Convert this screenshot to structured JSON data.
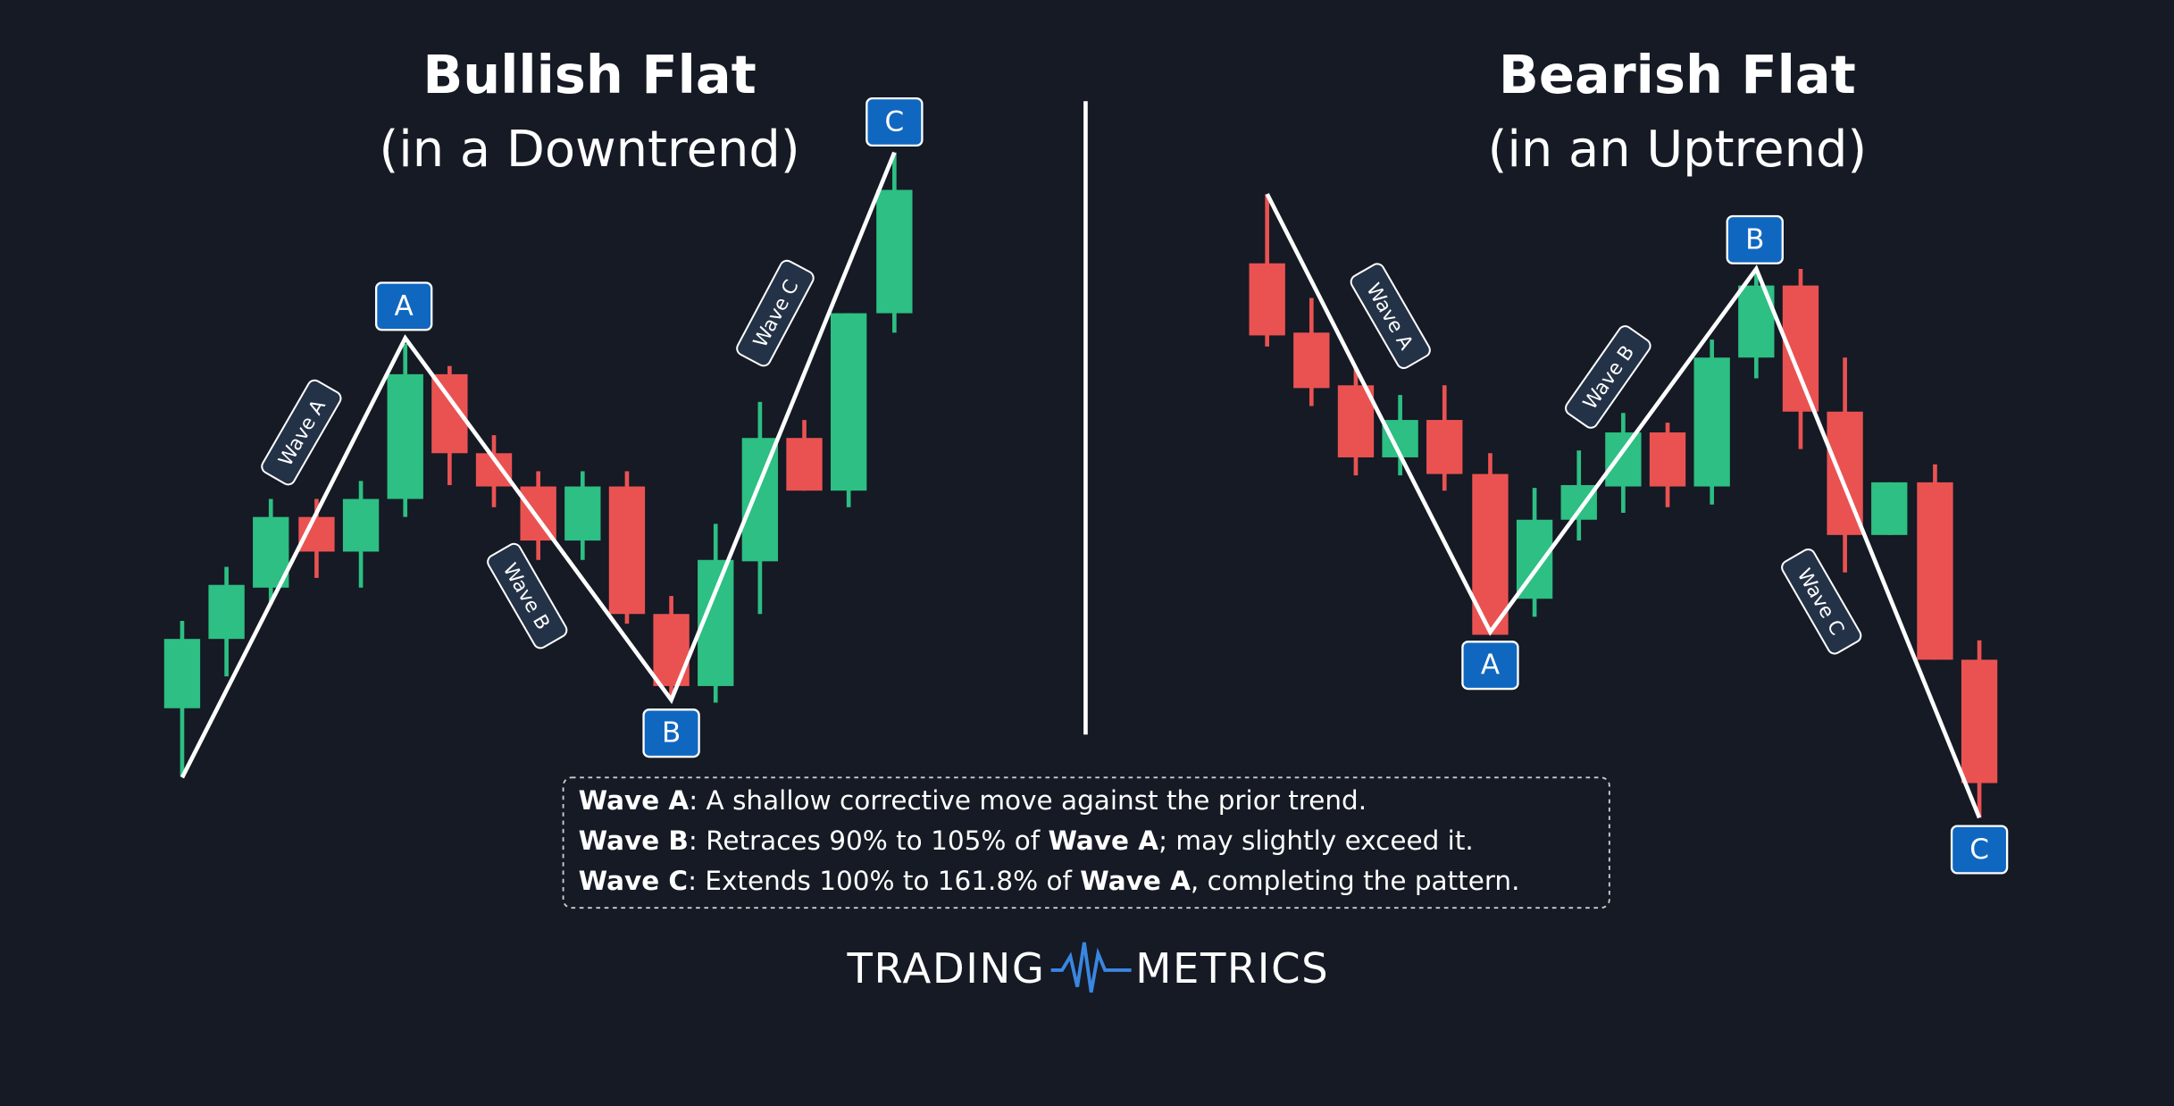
{
  "left": {
    "title": "Bullish Flat",
    "subtitle": "(in a Downtrend)",
    "points": [
      "A",
      "B",
      "C"
    ],
    "waves": [
      "Wave A",
      "Wave B",
      "Wave C"
    ]
  },
  "right": {
    "title": "Bearish Flat",
    "subtitle": "(in an Uptrend)",
    "points": [
      "A",
      "B",
      "C"
    ],
    "waves": [
      "Wave A",
      "Wave B",
      "Wave C"
    ]
  },
  "info": {
    "lines": [
      [
        "Wave A",
        ": A shallow corrective move against the prior trend."
      ],
      [
        "Wave B",
        ": Retraces 90% to 105% of ",
        "Wave A",
        "; may slightly exceed it."
      ],
      [
        "Wave C",
        ": Extends 100% to 161.8% of ",
        "Wave A",
        ", completing the pattern."
      ]
    ]
  },
  "logo": {
    "left": "TRADING",
    "right": "METRICS"
  }
}
